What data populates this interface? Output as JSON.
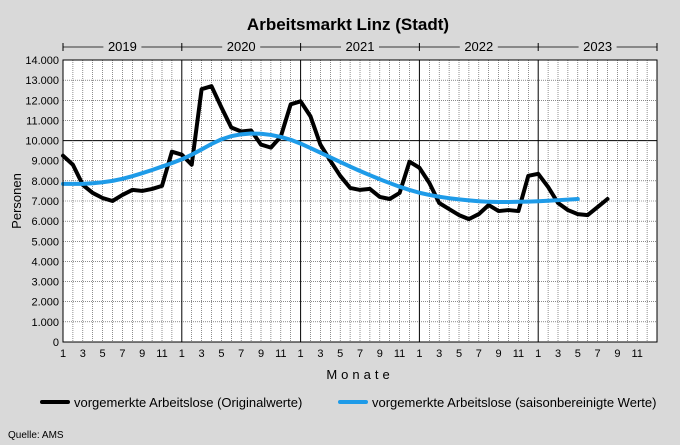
{
  "chart_data": {
    "type": "line",
    "title": "Arbeitsmarkt Linz (Stadt)",
    "xlabel": "Monate",
    "ylabel": "Personen",
    "ylim": [
      0,
      14000
    ],
    "yticks": [
      0,
      1000,
      2000,
      3000,
      4000,
      5000,
      6000,
      7000,
      8000,
      9000,
      10000,
      11000,
      12000,
      13000,
      14000
    ],
    "ytick_labels": [
      "0",
      "1.000",
      "2.000",
      "3.000",
      "4.000",
      "5.000",
      "6.000",
      "7.000",
      "8.000",
      "9.000",
      "10.000",
      "11.000",
      "12.000",
      "13.000",
      "14.000"
    ],
    "years": [
      "2019",
      "2020",
      "2021",
      "2022",
      "2023"
    ],
    "month_tick_labels": [
      "1",
      "3",
      "5",
      "7",
      "9",
      "11"
    ],
    "grid": true,
    "legend_position": "bottom",
    "series": [
      {
        "name": "vorgemerkte Arbeitslose (Originalwerte)",
        "color": "#000000",
        "values": [
          9250,
          8800,
          7800,
          7400,
          7150,
          7000,
          7300,
          7550,
          7500,
          7600,
          7750,
          9450,
          9300,
          8800,
          12550,
          12700,
          11650,
          10650,
          10450,
          10500,
          9800,
          9650,
          10200,
          11800,
          11950,
          11200,
          9800,
          9000,
          8250,
          7650,
          7550,
          7600,
          7200,
          7100,
          7400,
          8950,
          8650,
          7900,
          6900,
          6600,
          6300,
          6100,
          6350,
          6800,
          6500,
          6550,
          6500,
          8250,
          8350,
          7700,
          6900,
          6550,
          6350,
          6300,
          6700,
          7100
        ]
      },
      {
        "name": "vorgemerkte Arbeitslose (saisonbereinigte Werte)",
        "color": "#1e9be8",
        "values": [
          7850,
          7850,
          7850,
          7880,
          7930,
          8000,
          8100,
          8230,
          8380,
          8540,
          8710,
          8880,
          9070,
          9300,
          9560,
          9830,
          10060,
          10220,
          10310,
          10350,
          10340,
          10280,
          10180,
          10040,
          9850,
          9630,
          9400,
          9170,
          8940,
          8710,
          8490,
          8280,
          8080,
          7890,
          7710,
          7550,
          7410,
          7300,
          7210,
          7140,
          7080,
          7030,
          6990,
          6960,
          6950,
          6950,
          6960,
          6970,
          6990,
          7010,
          7040,
          7070,
          7100
        ]
      }
    ]
  },
  "source": "Quelle: AMS"
}
